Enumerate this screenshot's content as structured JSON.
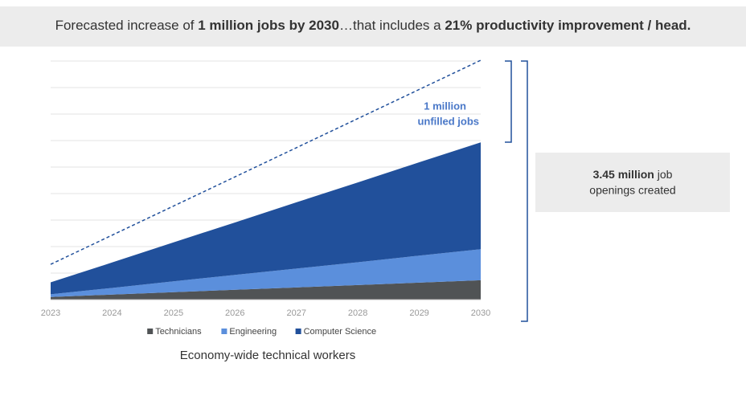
{
  "chart_data": {
    "type": "stacked_area",
    "title_parts": [
      {
        "text": "Forecasted increase of ",
        "bold": false
      },
      {
        "text": "1 million jobs by 2030",
        "bold": true
      },
      {
        "text": "…that includes a ",
        "bold": false
      },
      {
        "text": "21% productivity improvement / head.",
        "bold": true
      }
    ],
    "categories": [
      "2023",
      "2024",
      "2025",
      "2026",
      "2027",
      "2028",
      "2029",
      "2030"
    ],
    "series": [
      {
        "name": "Technicians",
        "color": "#505355",
        "values": [
          0.1,
          0.19,
          0.28,
          0.37,
          0.46,
          0.55,
          0.64,
          0.73
        ]
      },
      {
        "name": "Engineering",
        "color": "#5b8fdc",
        "values": [
          0.1,
          0.25,
          0.41,
          0.56,
          0.71,
          0.86,
          1.02,
          1.17
        ]
      },
      {
        "name": "Computer Science",
        "color": "#21509b",
        "values": [
          0.45,
          0.96,
          1.47,
          1.98,
          2.5,
          3.01,
          3.52,
          4.03
        ]
      }
    ],
    "demand_line": {
      "color": "#21509b",
      "style": "dashed",
      "values": [
        1.33,
        2.43,
        3.53,
        4.63,
        5.73,
        6.83,
        7.93,
        9.03
      ]
    },
    "ylim": [
      0,
      9
    ],
    "yticks": [
      0,
      1,
      2,
      3,
      4,
      5,
      6,
      7,
      8,
      9
    ],
    "grid": true,
    "legend": "bottom",
    "xlabel": "Economy-wide technical workers",
    "gap_annotation": [
      "1 million",
      "unfilled jobs"
    ],
    "openings_box": {
      "bold": "3.45 million",
      "rest": " job",
      "line2": "openings created"
    }
  }
}
